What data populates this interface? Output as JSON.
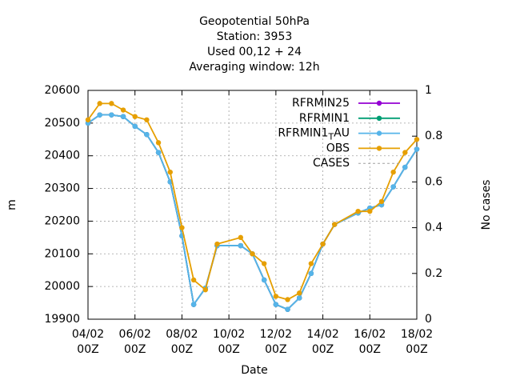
{
  "chart_data": {
    "type": "line",
    "title": [
      "Geopotential 50hPa",
      "Station:     3953",
      "Used  00,12 + 24",
      "Averaging window: 12h"
    ],
    "xlabel": "Date",
    "ylabel": "m",
    "y2label": "No cases",
    "x": [
      "04/02 00Z",
      "04/02 12Z",
      "05/02 00Z",
      "05/02 12Z",
      "06/02 00Z",
      "06/02 12Z",
      "07/02 00Z",
      "07/02 12Z",
      "08/02 00Z",
      "08/02 12Z",
      "09/02 00Z",
      "09/02 12Z",
      "10/02 12Z",
      "11/02 00Z",
      "11/02 12Z",
      "12/02 00Z",
      "12/02 12Z",
      "13/02 00Z",
      "13/02 12Z",
      "14/02 00Z",
      "14/02 12Z",
      "15/02 12Z",
      "16/02 00Z",
      "16/02 12Z",
      "17/02 00Z",
      "17/02 12Z",
      "18/02 00Z"
    ],
    "xlim": [
      "04/02 00Z",
      "18/02 00Z"
    ],
    "xticks": [
      [
        "04/02",
        "00Z"
      ],
      [
        "06/02",
        "00Z"
      ],
      [
        "08/02",
        "00Z"
      ],
      [
        "10/02",
        "00Z"
      ],
      [
        "12/02",
        "00Z"
      ],
      [
        "14/02",
        "00Z"
      ],
      [
        "16/02",
        "00Z"
      ],
      [
        "18/02",
        "00Z"
      ]
    ],
    "ylim": [
      19900,
      20600
    ],
    "yticks": [
      19900,
      20000,
      20100,
      20200,
      20300,
      20400,
      20500,
      20600
    ],
    "y2lim": [
      0,
      1
    ],
    "y2ticks": [
      0,
      0.2,
      0.4,
      0.6,
      0.8,
      1
    ],
    "grid": true,
    "legend": "top-right",
    "series": [
      {
        "name": "RFRMIN25",
        "color": "#9400d3",
        "values": [
          20500,
          20525,
          20525,
          20520,
          20490,
          20465,
          20410,
          20320,
          20155,
          19945,
          19995,
          20125,
          20125,
          20100,
          20020,
          19945,
          19930,
          19965,
          20040,
          20130,
          20190,
          20225,
          20240,
          20250,
          20305,
          20365,
          20420
        ]
      },
      {
        "name": "RFRMIN1",
        "color": "#009e73",
        "values": [
          20500,
          20525,
          20525,
          20520,
          20490,
          20465,
          20410,
          20320,
          20155,
          19945,
          19995,
          20125,
          20125,
          20100,
          20020,
          19945,
          19930,
          19965,
          20040,
          20130,
          20190,
          20225,
          20240,
          20250,
          20305,
          20365,
          20420
        ]
      },
      {
        "name": "RFRMIN1_TAU",
        "color": "#56b4e9",
        "values": [
          20500,
          20525,
          20525,
          20520,
          20490,
          20465,
          20410,
          20320,
          20155,
          19945,
          19995,
          20125,
          20125,
          20100,
          20020,
          19945,
          19930,
          19965,
          20040,
          20130,
          20190,
          20225,
          20240,
          20250,
          20305,
          20365,
          20420
        ]
      },
      {
        "name": "OBS",
        "color": "#e69f00",
        "values": [
          20510,
          20560,
          20560,
          20540,
          20520,
          20510,
          20440,
          20350,
          20180,
          20020,
          19990,
          20130,
          20150,
          20100,
          20070,
          19970,
          19960,
          19980,
          20070,
          20130,
          20190,
          20230,
          20230,
          20260,
          20350,
          20410,
          20450
        ]
      },
      {
        "name": "CASES",
        "color": "#a0a0a0",
        "axis": "y2",
        "dashed": true,
        "values": [
          null,
          null,
          null,
          null,
          null,
          null,
          null,
          null,
          null,
          null,
          null,
          null,
          null,
          null,
          null,
          null,
          null,
          null,
          null,
          null,
          null,
          null,
          null,
          null,
          null,
          null,
          null
        ]
      }
    ]
  }
}
